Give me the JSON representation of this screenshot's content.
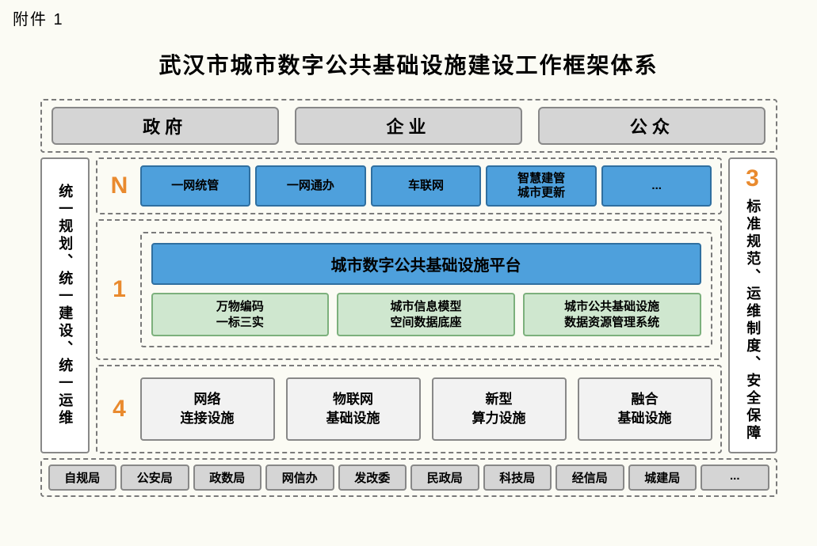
{
  "attachment_label": "附件 1",
  "title": "武汉市城市数字公共基础设施建设工作框架体系",
  "colors": {
    "page_bg": "#fbfbf4",
    "dash_border": "#7a7a7a",
    "actor_bg": "#d5d5d5",
    "actor_border": "#888888",
    "blue_bg": "#4ea0dc",
    "blue_border": "#2f6fa0",
    "green_bg": "#cfe7cf",
    "green_border": "#7cb07c",
    "grey_bg": "#f2f2f2",
    "grey_border": "#888888",
    "orange_label": "#e98a2e",
    "side_bg": "#ffffff"
  },
  "fonts": {
    "title_size_pt": 28,
    "actor_size_pt": 22,
    "layer_label_size_pt": 30,
    "item_size_pt": 15,
    "platform_size_pt": 20,
    "side_text_size_pt": 18,
    "dept_size_pt": 15
  },
  "top_actors": [
    "政府",
    "企业",
    "公众"
  ],
  "left_pillar": {
    "text": "统一规划、统一建设、统一运维"
  },
  "right_pillar": {
    "number": "3",
    "text": "标准规范、运维制度、安全保障"
  },
  "layer_n": {
    "label": "N",
    "items": [
      "一网统管",
      "一网通办",
      "车联网",
      "智慧建管\n城市更新",
      "..."
    ]
  },
  "layer_1": {
    "label": "1",
    "platform_title": "城市数字公共基础设施平台",
    "sub_items": [
      "万物编码\n一标三实",
      "城市信息模型\n空间数据底座",
      "城市公共基础设施\n数据资源管理系统"
    ]
  },
  "layer_4": {
    "label": "4",
    "items": [
      "网络\n连接设施",
      "物联网\n基础设施",
      "新型\n算力设施",
      "融合\n基础设施"
    ]
  },
  "bottom_depts": [
    "自规局",
    "公安局",
    "政数局",
    "网信办",
    "发改委",
    "民政局",
    "科技局",
    "经信局",
    "城建局",
    "..."
  ]
}
